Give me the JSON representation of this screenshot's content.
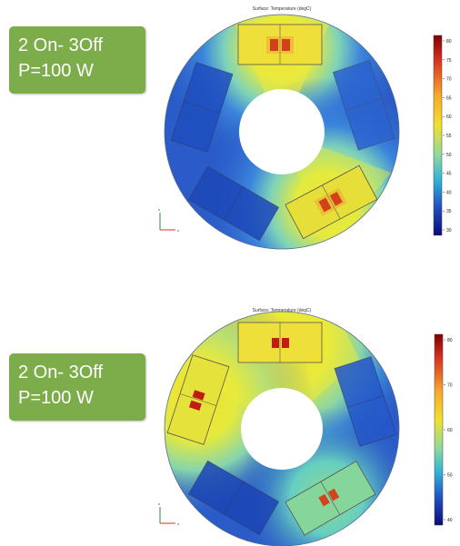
{
  "panels": [
    {
      "label_line1": "2 On- 3Off",
      "label_line2": "P=100 W",
      "plot_title": "Surface: Temperature (degC)",
      "colorbar_ticks": [
        "80",
        "75",
        "70",
        "65",
        "60",
        "55",
        "50",
        "45",
        "40",
        "35",
        "30"
      ],
      "axis_labels": {
        "y": "z",
        "x": "x"
      },
      "colors": {
        "hot": "#d7301f",
        "warm": "#f0e12a",
        "cool": "#5fd0c8",
        "cold": "#1f4fbf"
      }
    },
    {
      "label_line1": "2 On- 3Off",
      "label_line2": "P=100 W",
      "plot_title": "Surface: Temperature (degC)",
      "colorbar_ticks": [
        "80",
        "70",
        "60",
        "50",
        "40"
      ],
      "axis_labels": {
        "y": "z",
        "x": "x"
      },
      "colors": {
        "hot": "#d7301f",
        "warm": "#f0e12a",
        "cool": "#5fd0c8",
        "cold": "#1f4fbf"
      }
    }
  ]
}
